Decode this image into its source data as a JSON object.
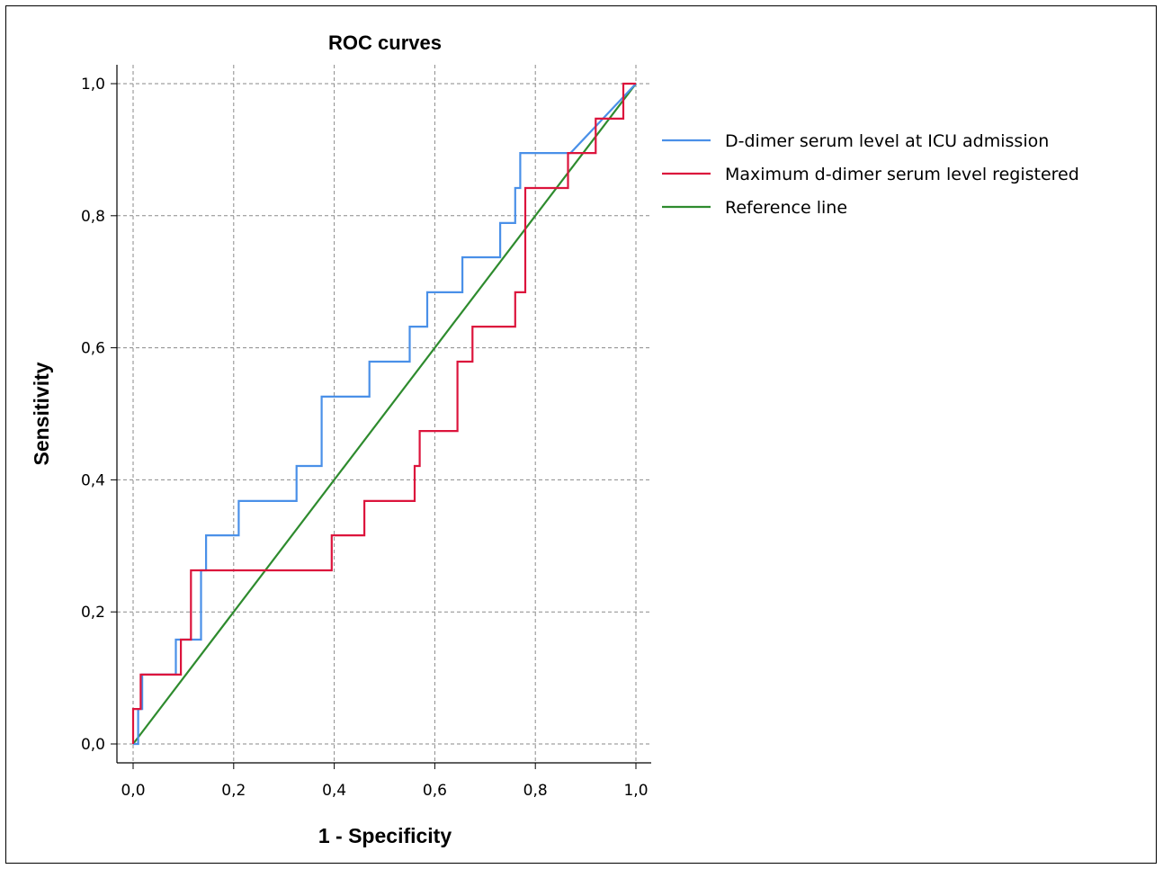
{
  "chart_data": {
    "type": "line",
    "title": "ROC curves",
    "xlabel": "1 - Specificity",
    "ylabel": "Sensitivity",
    "xlim": [
      0,
      1
    ],
    "ylim": [
      0,
      1
    ],
    "x_ticks": [
      "0,0",
      "0,2",
      "0,4",
      "0,6",
      "0,8",
      "1,0"
    ],
    "y_ticks": [
      "0,0",
      "0,2",
      "0,4",
      "0,6",
      "0,8",
      "1,0"
    ],
    "grid": true,
    "legend_position": "right",
    "series": [
      {
        "name": "D-dimer serum level at ICU admission",
        "color": "#4a90e8",
        "points": [
          [
            0,
            0
          ],
          [
            0.01,
            0
          ],
          [
            0.01,
            0.053
          ],
          [
            0.018,
            0.053
          ],
          [
            0.018,
            0.105
          ],
          [
            0.085,
            0.105
          ],
          [
            0.085,
            0.158
          ],
          [
            0.135,
            0.158
          ],
          [
            0.135,
            0.263
          ],
          [
            0.145,
            0.263
          ],
          [
            0.145,
            0.316
          ],
          [
            0.21,
            0.316
          ],
          [
            0.21,
            0.368
          ],
          [
            0.325,
            0.368
          ],
          [
            0.325,
            0.421
          ],
          [
            0.375,
            0.421
          ],
          [
            0.375,
            0.526
          ],
          [
            0.47,
            0.526
          ],
          [
            0.47,
            0.579
          ],
          [
            0.55,
            0.579
          ],
          [
            0.55,
            0.632
          ],
          [
            0.585,
            0.632
          ],
          [
            0.585,
            0.684
          ],
          [
            0.655,
            0.684
          ],
          [
            0.655,
            0.737
          ],
          [
            0.73,
            0.737
          ],
          [
            0.73,
            0.789
          ],
          [
            0.76,
            0.789
          ],
          [
            0.76,
            0.842
          ],
          [
            0.77,
            0.842
          ],
          [
            0.77,
            0.895
          ],
          [
            0.87,
            0.895
          ],
          [
            1,
            1
          ]
        ]
      },
      {
        "name": "Maximum d-dimer serum level registered",
        "color": "#dc143c",
        "points": [
          [
            0,
            0
          ],
          [
            0,
            0.053
          ],
          [
            0.015,
            0.053
          ],
          [
            0.015,
            0.105
          ],
          [
            0.095,
            0.105
          ],
          [
            0.095,
            0.158
          ],
          [
            0.115,
            0.158
          ],
          [
            0.115,
            0.263
          ],
          [
            0.395,
            0.263
          ],
          [
            0.395,
            0.316
          ],
          [
            0.46,
            0.316
          ],
          [
            0.46,
            0.368
          ],
          [
            0.56,
            0.368
          ],
          [
            0.56,
            0.421
          ],
          [
            0.57,
            0.421
          ],
          [
            0.57,
            0.474
          ],
          [
            0.645,
            0.474
          ],
          [
            0.645,
            0.579
          ],
          [
            0.675,
            0.579
          ],
          [
            0.675,
            0.632
          ],
          [
            0.76,
            0.632
          ],
          [
            0.76,
            0.684
          ],
          [
            0.78,
            0.684
          ],
          [
            0.78,
            0.842
          ],
          [
            0.865,
            0.842
          ],
          [
            0.865,
            0.895
          ],
          [
            0.92,
            0.895
          ],
          [
            0.92,
            0.947
          ],
          [
            0.975,
            0.947
          ],
          [
            0.975,
            1
          ],
          [
            1,
            1
          ]
        ]
      },
      {
        "name": "Reference line",
        "color": "#2e8b2e",
        "points": [
          [
            0,
            0
          ],
          [
            1,
            1
          ]
        ]
      }
    ]
  }
}
